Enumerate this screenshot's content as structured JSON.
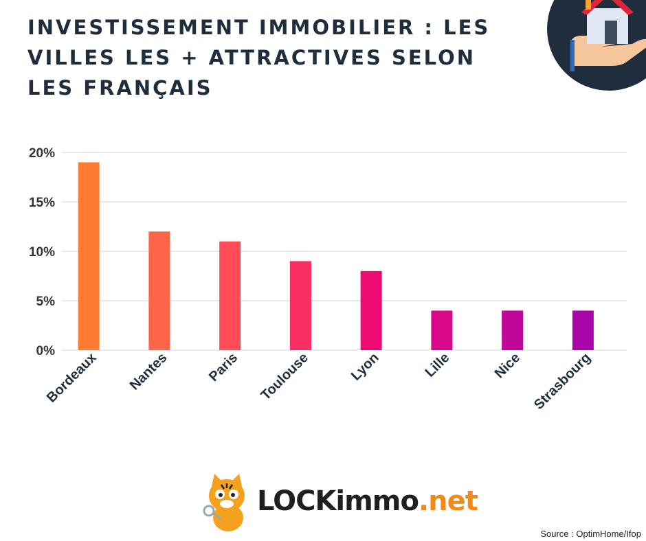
{
  "header": {
    "title": "INVESTISSEMENT IMMOBILIER : LES VILLES LES + ATTRACTIVES SELON LES FRANÇAIS"
  },
  "chart_data": {
    "type": "bar",
    "categories": [
      "Bordeaux",
      "Nantes",
      "Paris",
      "Toulouse",
      "Lyon",
      "Lille",
      "Nice",
      "Strasbourg"
    ],
    "values": [
      19,
      12,
      11,
      9,
      8,
      4,
      4,
      4
    ],
    "bar_colors": [
      "#ff7b32",
      "#ff6547",
      "#ff4c57",
      "#f72d64",
      "#ee0a72",
      "#d9088a",
      "#c1079a",
      "#a806a8"
    ],
    "yticks": [
      "20%",
      "15%",
      "10%",
      "5%",
      "0%"
    ],
    "ytick_values": [
      20,
      15,
      10,
      5,
      0
    ],
    "ylim": [
      0,
      20
    ],
    "unit": "%",
    "grid": true
  },
  "branding": {
    "logo_part_a": "LOCKimmo",
    "logo_part_b": ".net",
    "logo_colors": [
      "#1f1f1f",
      "#f28a1a"
    ],
    "house_badge_color": "#1f2d3d"
  },
  "footer": {
    "source": "Source : OptimHome/Ifop"
  }
}
